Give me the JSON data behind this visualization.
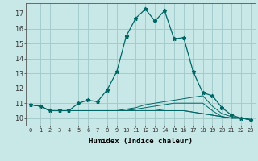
{
  "title": "",
  "xlabel": "Humidex (Indice chaleur)",
  "ylabel": "",
  "background_color": "#c8e8e8",
  "grid_color": "#a0c8c8",
  "line_color": "#006666",
  "x_ticks": [
    0,
    1,
    2,
    3,
    4,
    5,
    6,
    7,
    8,
    9,
    10,
    11,
    12,
    13,
    14,
    15,
    16,
    17,
    18,
    19,
    20,
    21,
    22,
    23
  ],
  "y_ticks": [
    10,
    11,
    12,
    13,
    14,
    15,
    16,
    17
  ],
  "xlim": [
    -0.5,
    23.5
  ],
  "ylim": [
    9.5,
    17.7
  ],
  "series": [
    [
      10.9,
      10.8,
      10.5,
      10.5,
      10.5,
      11.0,
      11.2,
      11.1,
      11.9,
      13.1,
      15.5,
      16.7,
      17.3,
      16.5,
      17.2,
      15.3,
      15.4,
      13.1,
      11.7,
      11.5,
      10.7,
      10.2,
      10.0,
      9.9
    ],
    [
      10.9,
      10.8,
      10.5,
      10.5,
      10.5,
      10.5,
      10.5,
      10.5,
      10.5,
      10.5,
      10.5,
      10.6,
      10.7,
      10.8,
      10.9,
      11.0,
      11.0,
      11.0,
      11.0,
      10.5,
      10.1,
      10.0,
      10.0,
      9.9
    ],
    [
      10.9,
      10.8,
      10.5,
      10.5,
      10.5,
      10.5,
      10.5,
      10.5,
      10.5,
      10.5,
      10.6,
      10.7,
      10.9,
      11.0,
      11.1,
      11.2,
      11.3,
      11.4,
      11.5,
      10.8,
      10.3,
      10.1,
      10.0,
      9.9
    ],
    [
      10.9,
      10.8,
      10.5,
      10.5,
      10.5,
      10.5,
      10.5,
      10.5,
      10.5,
      10.5,
      10.5,
      10.5,
      10.5,
      10.5,
      10.5,
      10.5,
      10.5,
      10.4,
      10.3,
      10.2,
      10.1,
      10.0,
      10.0,
      9.9
    ],
    [
      10.9,
      10.8,
      10.5,
      10.5,
      10.5,
      10.5,
      10.5,
      10.5,
      10.5,
      10.5,
      10.5,
      10.6,
      10.6,
      10.6,
      10.5,
      10.5,
      10.5,
      10.4,
      10.3,
      10.2,
      10.1,
      10.0,
      10.0,
      9.9
    ]
  ]
}
